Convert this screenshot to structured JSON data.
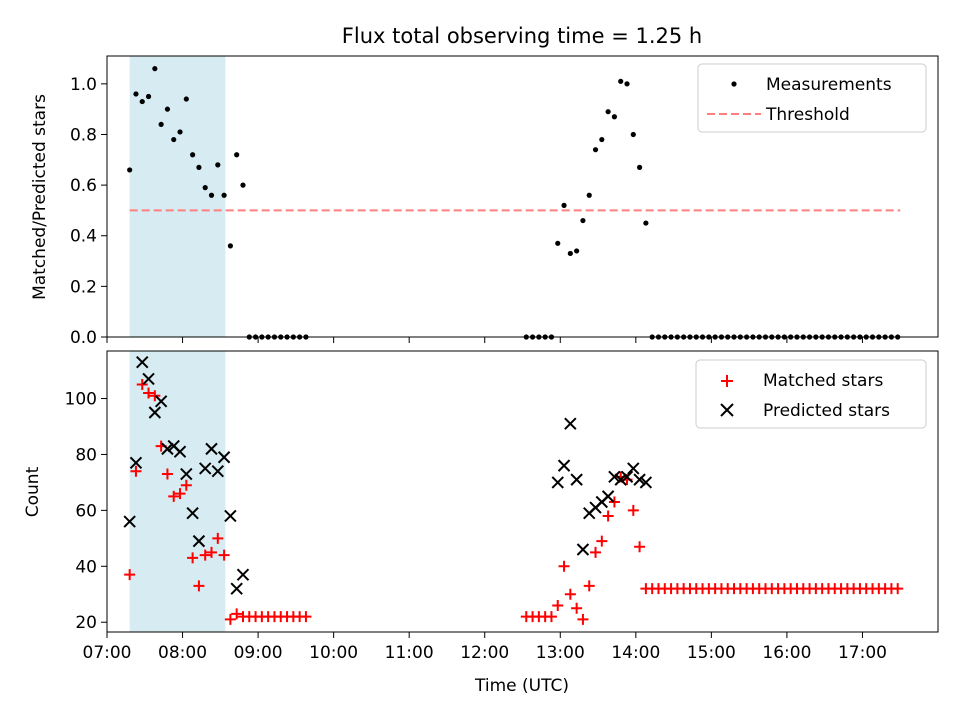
{
  "figure": {
    "title": "Flux total observing time = 1.25 h",
    "xlabel": "Time (UTC)"
  },
  "chart_data": [
    {
      "type": "scatter",
      "ylabel": "Matched/Predicted stars",
      "xlim": [
        "07:00",
        "18:00"
      ],
      "ylim": [
        0,
        1.11
      ],
      "yticks": [
        "0.0",
        "0.2",
        "0.4",
        "0.6",
        "0.8",
        "1.0"
      ],
      "yticks_values": [
        0,
        0.2,
        0.4,
        0.6,
        0.8,
        1.0
      ],
      "legend": {
        "position": "top-right",
        "entries": [
          "Measurements",
          "Threshold"
        ]
      },
      "shaded_span": [
        "07:18",
        "08:34"
      ],
      "threshold": {
        "name": "Threshold",
        "value": 0.5,
        "x_range": [
          "07:18",
          "17:30"
        ],
        "color": "#ff7f7f",
        "style": "dashed"
      },
      "series": [
        {
          "name": "Measurements",
          "marker": "dot",
          "color": "#000000",
          "x": [
            "07:18",
            "07:23",
            "07:28",
            "07:33",
            "07:38",
            "07:43",
            "07:48",
            "07:53",
            "07:58",
            "08:03",
            "08:08",
            "08:13",
            "08:18",
            "08:23",
            "08:28",
            "08:33",
            "08:38",
            "08:43",
            "08:48",
            "08:53",
            "08:58",
            "09:03",
            "09:08",
            "09:13",
            "09:18",
            "09:23",
            "09:28",
            "09:33",
            "09:38",
            "12:33",
            "12:38",
            "12:43",
            "12:48",
            "12:53",
            "12:58",
            "13:03",
            "13:08",
            "13:13",
            "13:18",
            "13:23",
            "13:28",
            "13:33",
            "13:38",
            "13:43",
            "13:48",
            "13:53",
            "13:58",
            "14:03",
            "14:08",
            "14:13",
            "14:18",
            "14:23",
            "14:28",
            "14:33",
            "14:38",
            "14:43",
            "14:48",
            "14:53",
            "14:58",
            "15:03",
            "15:08",
            "15:13",
            "15:18",
            "15:23",
            "15:28",
            "15:33",
            "15:38",
            "15:43",
            "15:48",
            "15:53",
            "15:58",
            "16:03",
            "16:08",
            "16:13",
            "16:18",
            "16:23",
            "16:28",
            "16:33",
            "16:38",
            "16:43",
            "16:48",
            "16:53",
            "16:58",
            "17:03",
            "17:08",
            "17:13",
            "17:18",
            "17:23",
            "17:28"
          ],
          "y": [
            0.66,
            0.96,
            0.93,
            0.95,
            1.06,
            0.84,
            0.9,
            0.78,
            0.81,
            0.94,
            0.72,
            0.67,
            0.59,
            0.56,
            0.68,
            0.56,
            0.36,
            0.72,
            0.6,
            0,
            0,
            0,
            0,
            0,
            0,
            0,
            0,
            0,
            0,
            0,
            0,
            0,
            0,
            0,
            0.37,
            0.52,
            0.33,
            0.34,
            0.46,
            0.56,
            0.74,
            0.78,
            0.89,
            0.87,
            1.01,
            1.0,
            0.8,
            0.67,
            0.45,
            0,
            0,
            0,
            0,
            0,
            0,
            0,
            0,
            0,
            0,
            0,
            0,
            0,
            0,
            0,
            0,
            0,
            0,
            0,
            0,
            0,
            0,
            0,
            0,
            0,
            0,
            0,
            0,
            0,
            0,
            0,
            0,
            0,
            0,
            0,
            0,
            0,
            0,
            0,
            0
          ]
        }
      ]
    },
    {
      "type": "scatter",
      "ylabel": "Count",
      "xlim": [
        "07:00",
        "18:00"
      ],
      "ylim": [
        16.5,
        117
      ],
      "yticks": [
        "20",
        "40",
        "60",
        "80",
        "100"
      ],
      "yticks_values": [
        20,
        40,
        60,
        80,
        100
      ],
      "xticks": [
        "07:00",
        "08:00",
        "09:00",
        "10:00",
        "11:00",
        "12:00",
        "13:00",
        "14:00",
        "15:00",
        "16:00",
        "17:00"
      ],
      "legend": {
        "position": "top-right",
        "entries": [
          "Matched stars",
          "Predicted stars"
        ]
      },
      "shaded_span": [
        "07:18",
        "08:34"
      ],
      "series": [
        {
          "name": "Matched stars",
          "marker": "plus",
          "color": "#ff0000",
          "x": [
            "07:18",
            "07:23",
            "07:28",
            "07:33",
            "07:38",
            "07:43",
            "07:48",
            "07:53",
            "07:58",
            "08:03",
            "08:08",
            "08:13",
            "08:18",
            "08:23",
            "08:28",
            "08:33",
            "08:38",
            "08:43",
            "08:48",
            "08:53",
            "08:58",
            "09:03",
            "09:08",
            "09:13",
            "09:18",
            "09:23",
            "09:28",
            "09:33",
            "09:38",
            "12:33",
            "12:38",
            "12:43",
            "12:48",
            "12:53",
            "12:58",
            "13:03",
            "13:08",
            "13:13",
            "13:18",
            "13:23",
            "13:28",
            "13:33",
            "13:38",
            "13:43",
            "13:48",
            "13:53",
            "13:58",
            "14:03",
            "14:08",
            "14:13",
            "14:18",
            "14:23",
            "14:28",
            "14:33",
            "14:38",
            "14:43",
            "14:48",
            "14:53",
            "14:58",
            "15:03",
            "15:08",
            "15:13",
            "15:18",
            "15:23",
            "15:28",
            "15:33",
            "15:38",
            "15:43",
            "15:48",
            "15:53",
            "15:58",
            "16:03",
            "16:08",
            "16:13",
            "16:18",
            "16:23",
            "16:28",
            "16:33",
            "16:38",
            "16:43",
            "16:48",
            "16:53",
            "16:58",
            "17:03",
            "17:08",
            "17:13",
            "17:18",
            "17:23",
            "17:28"
          ],
          "y": [
            37,
            74,
            105,
            102,
            101,
            83,
            73,
            65,
            66,
            69,
            43,
            33,
            44,
            45,
            50,
            44,
            21,
            23,
            22,
            22,
            22,
            22,
            22,
            22,
            22,
            22,
            22,
            22,
            22,
            22,
            22,
            22,
            22,
            22,
            26,
            40,
            30,
            25,
            21,
            33,
            45,
            49,
            58,
            63,
            72,
            71,
            60,
            47,
            32,
            32,
            32,
            32,
            32,
            32,
            32,
            32,
            32,
            32,
            32,
            32,
            32,
            32,
            32,
            32,
            32,
            32,
            32,
            32,
            32,
            32,
            32,
            32,
            32,
            32,
            32,
            32,
            32,
            32,
            32,
            32,
            32,
            32,
            32,
            32,
            32,
            32,
            32,
            32,
            32
          ]
        },
        {
          "name": "Predicted stars",
          "marker": "x",
          "color": "#000000",
          "x": [
            "07:18",
            "07:23",
            "07:28",
            "07:33",
            "07:38",
            "07:43",
            "07:48",
            "07:53",
            "07:58",
            "08:03",
            "08:08",
            "08:13",
            "08:18",
            "08:23",
            "08:28",
            "08:33",
            "08:38",
            "08:43",
            "08:48",
            "12:58",
            "13:03",
            "13:08",
            "13:13",
            "13:18",
            "13:23",
            "13:28",
            "13:33",
            "13:38",
            "13:43",
            "13:48",
            "13:53",
            "13:58",
            "14:03",
            "14:08"
          ],
          "y": [
            56,
            77,
            113,
            107,
            95,
            99,
            82,
            83,
            81,
            73,
            59,
            49,
            75,
            82,
            74,
            79,
            58,
            32,
            37,
            70,
            76,
            91,
            71,
            46,
            59,
            61,
            63,
            65,
            72,
            71,
            72,
            75,
            71,
            70
          ]
        }
      ]
    }
  ]
}
